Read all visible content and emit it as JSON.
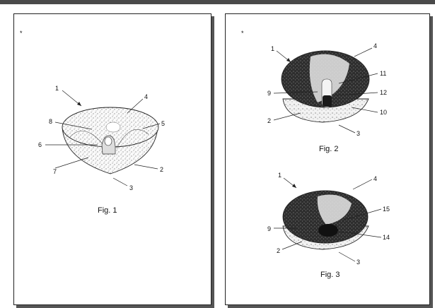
{
  "colors": {
    "background": "#ffffff",
    "page_border": "#222222",
    "shadow": "#555555",
    "ink": "#111111",
    "dark_fill": "#2a2a2a"
  },
  "pages": [
    {
      "mark": "*",
      "figures": [
        {
          "caption": "Fig. 1",
          "labels": [
            "1",
            "2",
            "3",
            "4",
            "5",
            "6",
            "7",
            "8"
          ]
        }
      ]
    },
    {
      "mark": "*",
      "figures": [
        {
          "caption": "Fig. 2",
          "labels": [
            "1",
            "2",
            "3",
            "4",
            "9",
            "10",
            "11",
            "12"
          ]
        },
        {
          "caption": "Fig. 3",
          "labels": [
            "1",
            "2",
            "3",
            "4",
            "9",
            "14",
            "15"
          ]
        }
      ]
    }
  ]
}
